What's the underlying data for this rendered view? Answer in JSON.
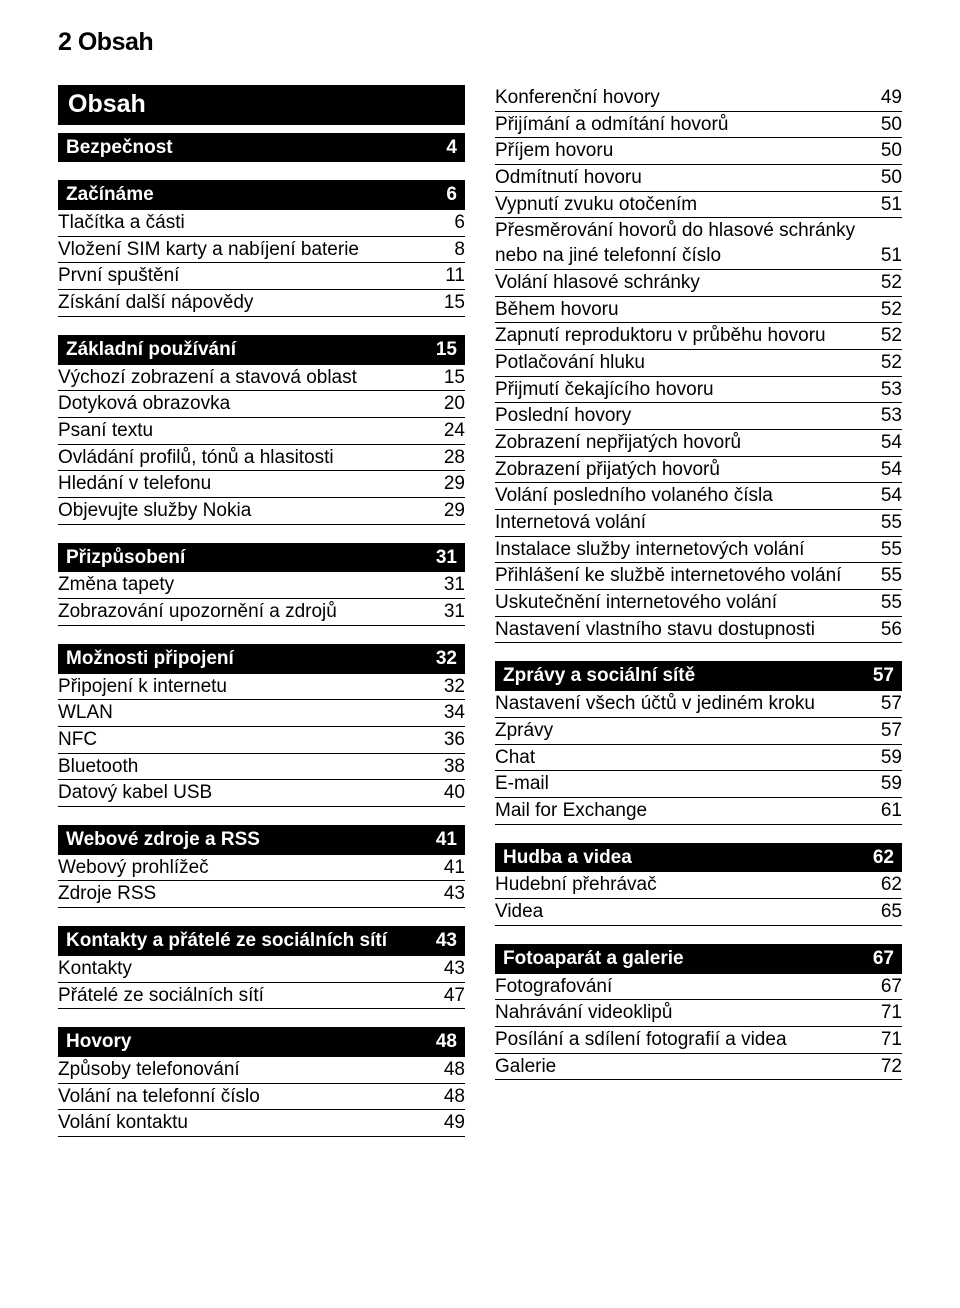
{
  "colors": {
    "background": "#ffffff",
    "text": "#000000",
    "section_bg": "#000000",
    "section_text": "#ffffff",
    "rule": "#000000"
  },
  "typography": {
    "header_fontsize_pt": 19,
    "title_fontsize_pt": 19,
    "section_fontsize_pt": 14,
    "item_fontsize_pt": 14,
    "font_family": "sans-serif"
  },
  "page_header": "2      Obsah",
  "title": "Obsah",
  "left": [
    {
      "type": "section",
      "label": "Bezpečnost",
      "page": "4"
    },
    {
      "type": "section",
      "label": "Začínáme",
      "page": "6"
    },
    {
      "type": "item",
      "label": "Tlačítka a části",
      "page": "6"
    },
    {
      "type": "item",
      "label": "Vložení SIM karty a nabíjení baterie",
      "page": "8"
    },
    {
      "type": "item",
      "label": "První spuštění",
      "page": "11"
    },
    {
      "type": "item",
      "label": "Získání další nápovědy",
      "page": "15"
    },
    {
      "type": "section",
      "label": "Základní používání",
      "page": "15"
    },
    {
      "type": "item",
      "label": "Výchozí zobrazení a stavová oblast",
      "page": "15"
    },
    {
      "type": "item",
      "label": "Dotyková obrazovka",
      "page": "20"
    },
    {
      "type": "item",
      "label": "Psaní textu",
      "page": "24"
    },
    {
      "type": "item",
      "label": "Ovládání profilů, tónů a hlasitosti",
      "page": "28"
    },
    {
      "type": "item",
      "label": "Hledání v telefonu",
      "page": "29"
    },
    {
      "type": "item",
      "label": "Objevujte služby Nokia",
      "page": "29"
    },
    {
      "type": "section",
      "label": "Přizpůsobení",
      "page": "31"
    },
    {
      "type": "item",
      "label": "Změna tapety",
      "page": "31"
    },
    {
      "type": "item",
      "label": "Zobrazování upozornění a zdrojů",
      "page": "31"
    },
    {
      "type": "section",
      "label": "Možnosti připojení",
      "page": "32"
    },
    {
      "type": "item",
      "label": "Připojení k internetu",
      "page": "32"
    },
    {
      "type": "item",
      "label": "WLAN",
      "page": "34"
    },
    {
      "type": "item",
      "label": "NFC",
      "page": "36"
    },
    {
      "type": "item",
      "label": "Bluetooth",
      "page": "38"
    },
    {
      "type": "item",
      "label": "Datový kabel USB",
      "page": "40"
    },
    {
      "type": "section",
      "label": "Webové zdroje a RSS",
      "page": "41"
    },
    {
      "type": "item",
      "label": "Webový prohlížeč",
      "page": "41"
    },
    {
      "type": "item",
      "label": "Zdroje RSS",
      "page": "43"
    },
    {
      "type": "section",
      "label": "Kontakty a přátelé ze sociálních sítí",
      "page": "43"
    },
    {
      "type": "item",
      "label": "Kontakty",
      "page": "43"
    },
    {
      "type": "item",
      "label": "Přátelé ze sociálních sítí",
      "page": "47"
    },
    {
      "type": "section",
      "label": "Hovory",
      "page": "48"
    },
    {
      "type": "item",
      "label": "Způsoby telefonování",
      "page": "48"
    },
    {
      "type": "item",
      "label": "Volání na telefonní číslo",
      "page": "48"
    },
    {
      "type": "item",
      "label": "Volání kontaktu",
      "page": "49"
    }
  ],
  "right": [
    {
      "type": "item",
      "label": "Konferenční hovory",
      "page": "49"
    },
    {
      "type": "item",
      "label": "Přijímání a odmítání hovorů",
      "page": "50"
    },
    {
      "type": "item",
      "label": "Příjem hovoru",
      "page": "50"
    },
    {
      "type": "item",
      "label": "Odmítnutí hovoru",
      "page": "50"
    },
    {
      "type": "item",
      "label": "Vypnutí zvuku otočením",
      "page": "51"
    },
    {
      "type": "item",
      "label": "Přesměrování hovorů do hlasové schránky nebo na jiné telefonní číslo",
      "page": "51"
    },
    {
      "type": "item",
      "label": "Volání hlasové schránky",
      "page": "52"
    },
    {
      "type": "item",
      "label": "Během hovoru",
      "page": "52"
    },
    {
      "type": "item",
      "label": "Zapnutí reproduktoru v průběhu hovoru",
      "page": "52"
    },
    {
      "type": "item",
      "label": "Potlačování hluku",
      "page": "52"
    },
    {
      "type": "item",
      "label": "Přijmutí čekajícího hovoru",
      "page": "53"
    },
    {
      "type": "item",
      "label": "Poslední hovory",
      "page": "53"
    },
    {
      "type": "item",
      "label": "Zobrazení nepřijatých hovorů",
      "page": "54"
    },
    {
      "type": "item",
      "label": "Zobrazení přijatých hovorů",
      "page": "54"
    },
    {
      "type": "item",
      "label": "Volání posledního volaného čísla",
      "page": "54"
    },
    {
      "type": "item",
      "label": "Internetová volání",
      "page": "55"
    },
    {
      "type": "item",
      "label": "Instalace služby internetových volání",
      "page": "55"
    },
    {
      "type": "item",
      "label": "Přihlášení ke službě internetového volání",
      "page": "55"
    },
    {
      "type": "item",
      "label": "Uskutečnění internetového volání",
      "page": "55"
    },
    {
      "type": "item",
      "label": "Nastavení vlastního stavu dostupnosti",
      "page": "56"
    },
    {
      "type": "section",
      "label": "Zprávy a sociální sítě",
      "page": "57"
    },
    {
      "type": "item",
      "label": "Nastavení všech účtů v jediném kroku",
      "page": "57"
    },
    {
      "type": "item",
      "label": "Zprávy",
      "page": "57"
    },
    {
      "type": "item",
      "label": "Chat",
      "page": "59"
    },
    {
      "type": "item",
      "label": "E-mail",
      "page": "59"
    },
    {
      "type": "item",
      "label": "Mail for Exchange",
      "page": "61"
    },
    {
      "type": "section",
      "label": "Hudba a videa",
      "page": "62"
    },
    {
      "type": "item",
      "label": "Hudební přehrávač",
      "page": "62"
    },
    {
      "type": "item",
      "label": "Videa",
      "page": "65"
    },
    {
      "type": "section",
      "label": "Fotoaparát a galerie",
      "page": "67"
    },
    {
      "type": "item",
      "label": "Fotografování",
      "page": "67"
    },
    {
      "type": "item",
      "label": "Nahrávání videoklipů",
      "page": "71"
    },
    {
      "type": "item",
      "label": "Posílání a sdílení fotografií a videa",
      "page": "71"
    },
    {
      "type": "item",
      "label": "Galerie",
      "page": "72"
    }
  ]
}
